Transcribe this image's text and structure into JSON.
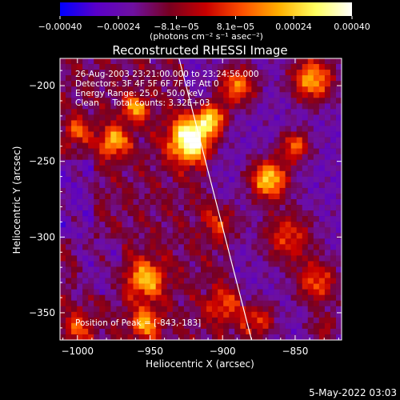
{
  "chart_data": {
    "type": "heatmap",
    "title": "Reconstructed RHESSI Image",
    "xlabel": "Heliocentric X (arcsec)",
    "ylabel": "Heliocentric Y (arcsec)",
    "xlim": [
      -1012,
      -818
    ],
    "ylim": [
      -368,
      -182
    ],
    "x_ticks": [
      -1000,
      -950,
      -900,
      -850
    ],
    "x_tick_labels": [
      "−1000",
      "−950",
      "−900",
      "−850"
    ],
    "y_ticks": [
      -200,
      -250,
      -300,
      -350
    ],
    "y_tick_labels": [
      "−200",
      "−250",
      "−300",
      "−350"
    ],
    "colorbar": {
      "min": -0.0004,
      "max": 0.0004,
      "ticks": [
        -0.0004,
        -0.00024,
        -8.1e-05,
        8.1e-05,
        0.00024,
        0.0004
      ],
      "tick_labels": [
        "−0.00040",
        "−0.00024",
        "−8.1e−05",
        "8.1e−05",
        "0.00024",
        "0.00040"
      ],
      "unit_label": "(photons cm⁻² s⁻¹ asec⁻²)",
      "colormap": [
        "#0000ff",
        "#5a00c8",
        "#6e10a0",
        "#780020",
        "#c80000",
        "#ff5000",
        "#ffb000",
        "#ffff60",
        "#ffffff"
      ]
    },
    "annotations": [
      "26-Aug-2003 23:21:00.000 to 23:24:56.000",
      "Detectors: 3F 4F 5F 6F 7F 8F Att 0",
      "Energy Range: 25.0 - 50.0 keV",
      "Clean     Total counts: 3.32E+03",
      "Position of Peak = [-843,-183]"
    ],
    "limb_line": {
      "x": [
        -930,
        -880
      ],
      "y": [
        -182,
        -368
      ]
    },
    "peak": {
      "x": -843,
      "y": -183
    },
    "sources": [
      {
        "x": -922,
        "y": -236,
        "sigma": 10,
        "amp": 1.0
      },
      {
        "x": -908,
        "y": -222,
        "sigma": 7,
        "amp": 0.75
      },
      {
        "x": -868,
        "y": -262,
        "sigma": 9,
        "amp": 0.8
      },
      {
        "x": -850,
        "y": -240,
        "sigma": 7,
        "amp": 0.55
      },
      {
        "x": -855,
        "y": -300,
        "sigma": 12,
        "amp": 0.45
      },
      {
        "x": -835,
        "y": -330,
        "sigma": 10,
        "amp": 0.5
      },
      {
        "x": -838,
        "y": -196,
        "sigma": 10,
        "amp": 0.7
      },
      {
        "x": -890,
        "y": -200,
        "sigma": 9,
        "amp": 0.6
      },
      {
        "x": -975,
        "y": -237,
        "sigma": 7,
        "amp": 0.6
      },
      {
        "x": -960,
        "y": -215,
        "sigma": 6,
        "amp": 0.55
      },
      {
        "x": -1000,
        "y": -230,
        "sigma": 6,
        "amp": 0.4
      },
      {
        "x": -1000,
        "y": -360,
        "sigma": 7,
        "amp": 0.35
      },
      {
        "x": -953,
        "y": -328,
        "sigma": 9,
        "amp": 0.6
      },
      {
        "x": -953,
        "y": -357,
        "sigma": 7,
        "amp": 0.55
      },
      {
        "x": -900,
        "y": -345,
        "sigma": 8,
        "amp": 0.35
      },
      {
        "x": -875,
        "y": -355,
        "sigma": 8,
        "amp": 0.45
      },
      {
        "x": -830,
        "y": -360,
        "sigma": 7,
        "amp": 0.3
      },
      {
        "x": -900,
        "y": -290,
        "sigma": 9,
        "amp": 0.3
      }
    ],
    "footer_date": "5-May-2022 03:03"
  }
}
